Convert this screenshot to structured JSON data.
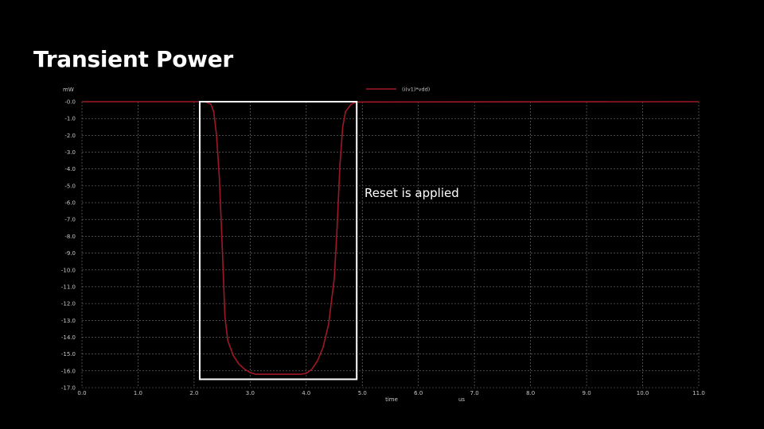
{
  "slide": {
    "title": "Transient Power",
    "annotation": "Reset is applied"
  },
  "colors": {
    "background": "#000000",
    "trace": "#a01826",
    "grid": "#7a7a7a",
    "axis_text": "#c8c8c8",
    "highlight_box": "#ffffff"
  },
  "chart_data": {
    "type": "line",
    "title": "",
    "xlabel": "time",
    "xunit": "us",
    "ylabel": "mW",
    "xlim": [
      0.0,
      11.0
    ],
    "ylim": [
      -17.0,
      0.0
    ],
    "x_ticks": [
      "0.0",
      "1.0",
      "2.0",
      "3.0",
      "4.0",
      "5.0",
      "6.0",
      "7.0",
      "8.0",
      "9.0",
      "10.0",
      "11.0"
    ],
    "y_ticks": [
      "-0.0",
      "-1.0",
      "-2.0",
      "-3.0",
      "-4.0",
      "-5.0",
      "-6.0",
      "-7.0",
      "-8.0",
      "-9.0",
      "-10.0",
      "-11.0",
      "-12.0",
      "-13.0",
      "-14.0",
      "-15.0",
      "-16.0",
      "-17.0"
    ],
    "grid": true,
    "legend_position": "top-center",
    "series": [
      {
        "name": "(i(v1)*vdd)",
        "x": [
          0.0,
          2.1,
          2.2,
          2.3,
          2.35,
          2.4,
          2.45,
          2.5,
          2.55,
          2.6,
          2.7,
          2.8,
          2.9,
          3.0,
          3.1,
          3.2,
          3.5,
          3.8,
          3.9,
          4.0,
          4.1,
          4.2,
          4.3,
          4.4,
          4.5,
          4.55,
          4.6,
          4.65,
          4.7,
          4.8,
          4.9,
          11.0
        ],
        "y": [
          0.0,
          0.0,
          -0.02,
          -0.15,
          -0.6,
          -2.0,
          -4.5,
          -8.5,
          -12.8,
          -14.2,
          -15.1,
          -15.6,
          -15.9,
          -16.1,
          -16.2,
          -16.2,
          -16.2,
          -16.2,
          -16.2,
          -16.15,
          -15.9,
          -15.4,
          -14.6,
          -13.2,
          -10.5,
          -7.5,
          -3.8,
          -1.5,
          -0.6,
          -0.15,
          -0.02,
          0.0
        ]
      }
    ],
    "highlight_region": {
      "x": [
        2.1,
        4.9
      ],
      "y": [
        -16.5,
        0.0
      ]
    }
  }
}
